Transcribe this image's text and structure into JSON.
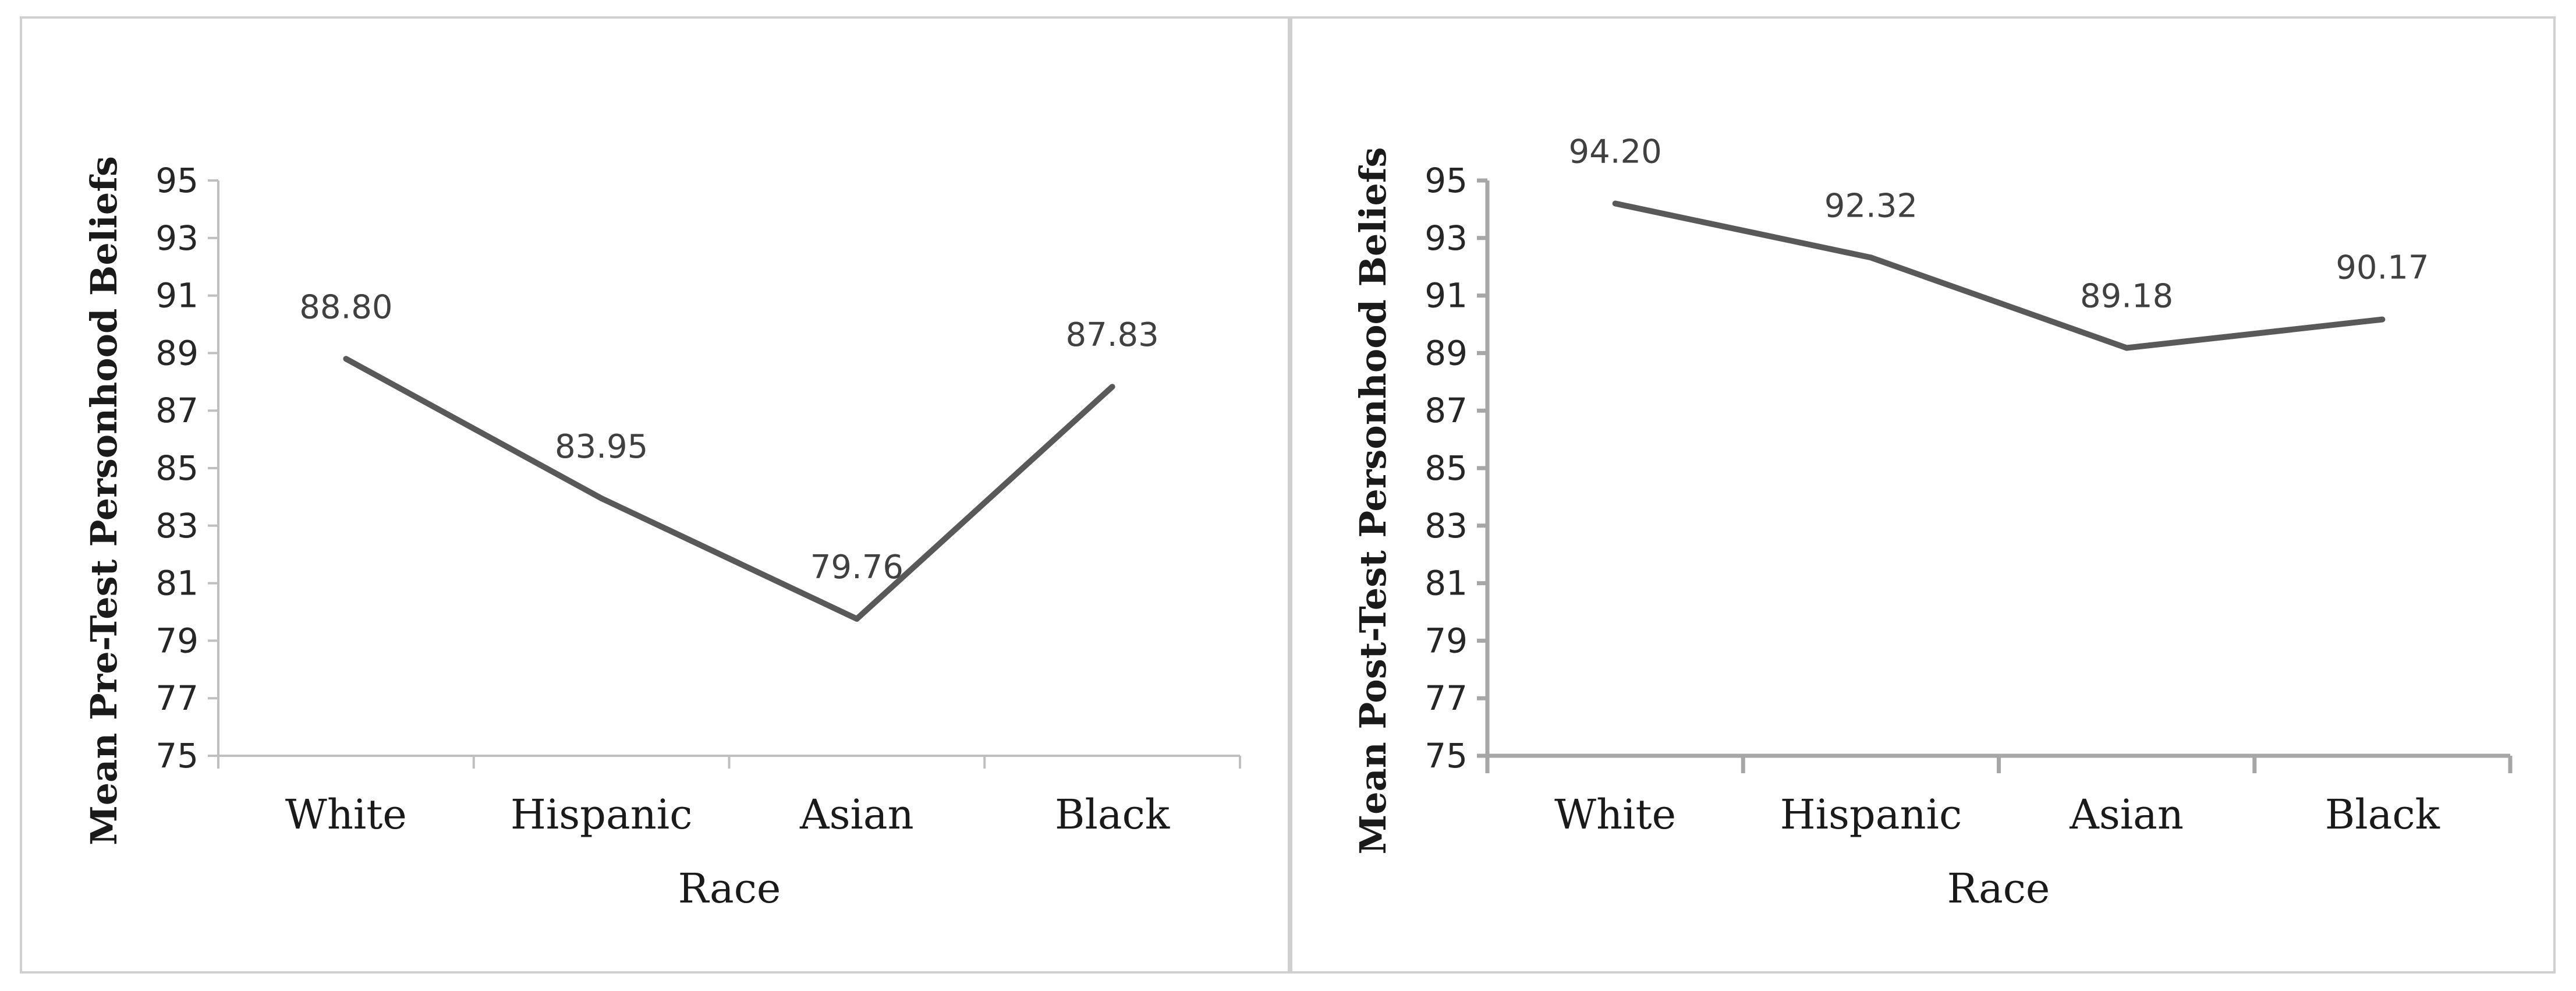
{
  "chart_data": [
    {
      "type": "line",
      "categories": [
        "White",
        "Hispanic",
        "Asian",
        "Black"
      ],
      "values": [
        88.8,
        83.95,
        79.76,
        87.83
      ],
      "data_labels": [
        "88.80",
        "83.95",
        "79.76",
        "87.83"
      ],
      "xlabel": "Race",
      "ylabel": "Mean Pre-Test Personhood Beliefs",
      "ylim": [
        75,
        95
      ],
      "yticks": [
        "75",
        "77",
        "79",
        "81",
        "83",
        "85",
        "87",
        "89",
        "91",
        "93",
        "95"
      ],
      "grid": false,
      "legend": "none",
      "color": "#595959"
    },
    {
      "type": "line",
      "categories": [
        "White",
        "Hispanic",
        "Asian",
        "Black"
      ],
      "values": [
        94.2,
        92.32,
        89.18,
        90.17
      ],
      "data_labels": [
        "94.20",
        "92.32",
        "89.18",
        "90.17"
      ],
      "xlabel": "Race",
      "ylabel": "Mean Post-Test Personhood Beliefs",
      "ylim": [
        75,
        95
      ],
      "yticks": [
        "75",
        "77",
        "79",
        "81",
        "83",
        "85",
        "87",
        "89",
        "91",
        "93",
        "95"
      ],
      "grid": false,
      "legend": "none",
      "color": "#595959"
    }
  ]
}
